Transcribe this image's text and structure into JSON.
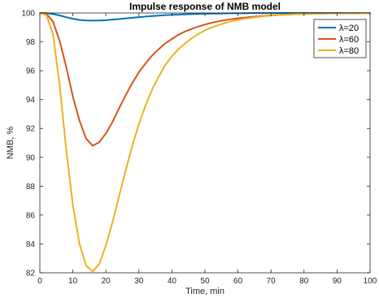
{
  "chart_data": {
    "type": "line",
    "title": "Impulse response of NMB model",
    "xlabel": "Time, min",
    "ylabel": "NMB, %",
    "xlim": [
      0,
      100
    ],
    "ylim": [
      82,
      100
    ],
    "xticks": [
      0,
      10,
      20,
      30,
      40,
      50,
      60,
      70,
      80,
      90,
      100
    ],
    "yticks": [
      82,
      84,
      86,
      88,
      90,
      92,
      94,
      96,
      98,
      100
    ],
    "grid": false,
    "legend_position": "top-right",
    "series": [
      {
        "name": "λ=20",
        "color": "#0072BD",
        "x": [
          0,
          2,
          4,
          6,
          8,
          10,
          12,
          14,
          16,
          18,
          20,
          22,
          24,
          26,
          28,
          30,
          32,
          34,
          36,
          38,
          40,
          42,
          44,
          46,
          48,
          50,
          52,
          54,
          56,
          58,
          60,
          62,
          64,
          66,
          68,
          70,
          72,
          74,
          76,
          78,
          80,
          82,
          84,
          86,
          88,
          90,
          92,
          94,
          96,
          98,
          100
        ],
        "y": [
          100,
          99.99,
          99.93,
          99.83,
          99.71,
          99.6,
          99.52,
          99.48,
          99.47,
          99.48,
          99.5,
          99.54,
          99.58,
          99.63,
          99.67,
          99.71,
          99.75,
          99.79,
          99.82,
          99.85,
          99.87,
          99.89,
          99.91,
          99.92,
          99.94,
          99.95,
          99.96,
          99.96,
          99.97,
          99.98,
          99.98,
          99.98,
          99.99,
          99.99,
          99.99,
          99.99,
          99.99,
          100,
          100,
          100,
          100,
          100,
          100,
          100,
          100,
          100,
          100,
          100,
          100,
          100,
          100
        ]
      },
      {
        "name": "λ=60",
        "color": "#D95319",
        "x": [
          0,
          2,
          4,
          6,
          8,
          10,
          12,
          14,
          16,
          18,
          20,
          22,
          24,
          26,
          28,
          30,
          32,
          34,
          36,
          38,
          40,
          42,
          44,
          46,
          48,
          50,
          52,
          54,
          56,
          58,
          60,
          62,
          64,
          66,
          68,
          70,
          72,
          74,
          76,
          78,
          80,
          82,
          84,
          86,
          88,
          90,
          92,
          94,
          96,
          98,
          100
        ],
        "y": [
          100,
          99.94,
          99.4,
          98.05,
          96.26,
          94.2,
          92.55,
          91.3,
          90.8,
          91.05,
          91.65,
          92.45,
          93.4,
          94.3,
          95.15,
          95.9,
          96.5,
          97.05,
          97.5,
          97.9,
          98.2,
          98.5,
          98.72,
          98.9,
          99.06,
          99.2,
          99.32,
          99.42,
          99.5,
          99.57,
          99.63,
          99.68,
          99.73,
          99.77,
          99.8,
          99.83,
          99.86,
          99.88,
          99.9,
          99.92,
          99.93,
          99.94,
          99.95,
          99.96,
          99.97,
          99.97,
          99.98,
          99.98,
          99.98,
          99.99,
          99.99
        ]
      },
      {
        "name": "λ=80",
        "color": "#EDB120",
        "x": [
          0,
          2,
          4,
          6,
          8,
          10,
          12,
          14,
          16,
          18,
          20,
          22,
          24,
          26,
          28,
          30,
          32,
          34,
          36,
          38,
          40,
          42,
          44,
          46,
          48,
          50,
          52,
          54,
          56,
          58,
          60,
          62,
          64,
          66,
          68,
          70,
          72,
          74,
          76,
          78,
          80,
          82,
          84,
          86,
          88,
          90,
          92,
          94,
          96,
          98,
          100
        ],
        "y": [
          100,
          99.85,
          98.5,
          95.0,
          90.5,
          86.7,
          84.0,
          82.5,
          82.1,
          82.6,
          83.9,
          85.5,
          87.3,
          89.1,
          90.8,
          92.3,
          93.6,
          94.7,
          95.6,
          96.4,
          97.0,
          97.5,
          97.9,
          98.25,
          98.55,
          98.8,
          99.0,
          99.15,
          99.3,
          99.42,
          99.52,
          99.6,
          99.67,
          99.73,
          99.78,
          99.82,
          99.85,
          99.88,
          99.9,
          99.92,
          99.93,
          99.94,
          99.95,
          99.96,
          99.97,
          99.97,
          99.98,
          99.98,
          99.98,
          99.99,
          99.99
        ]
      }
    ]
  }
}
